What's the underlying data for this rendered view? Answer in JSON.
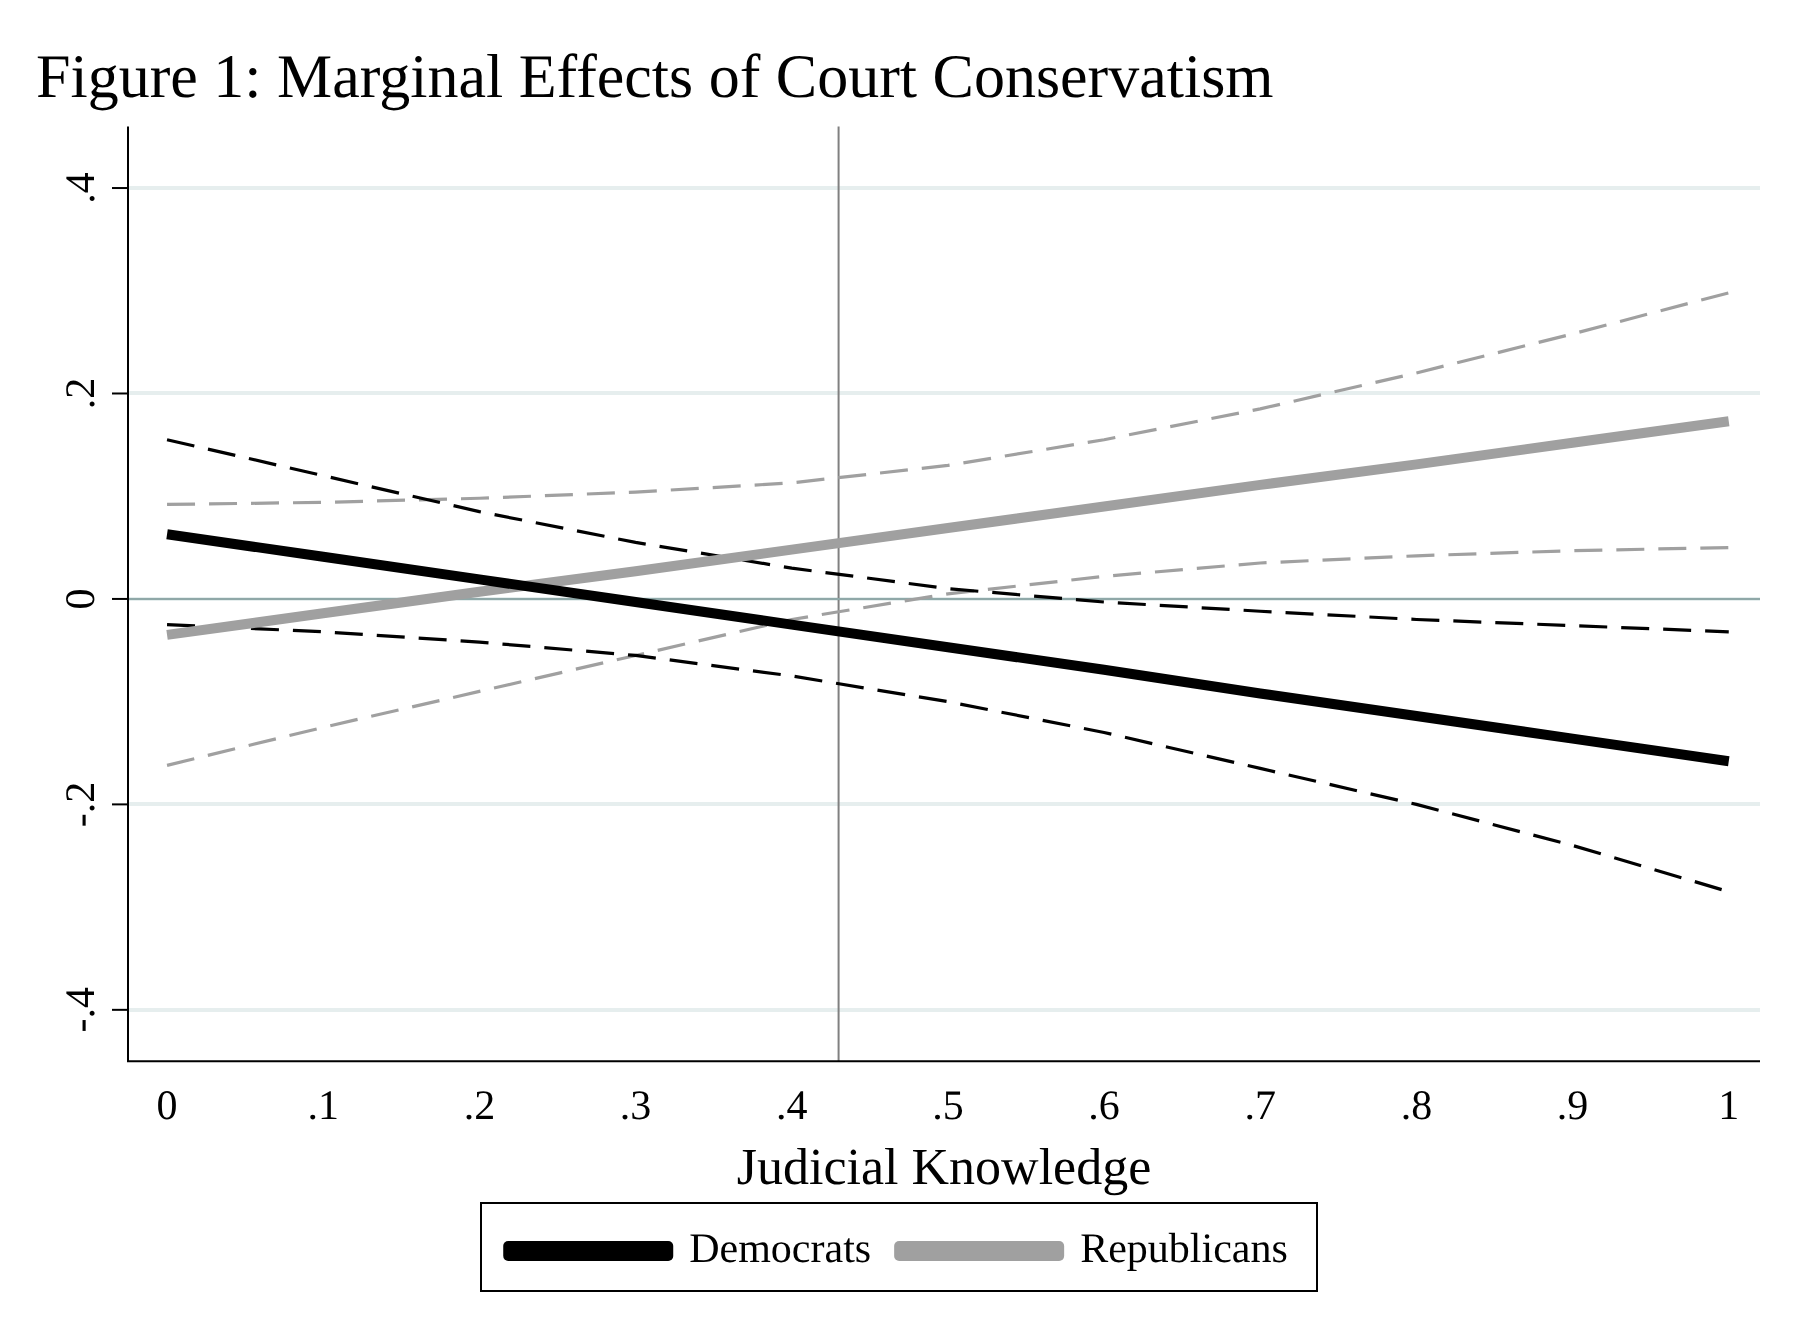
{
  "chart_data": {
    "type": "line",
    "title": "Figure 1: Marginal Effects of Court Conservatism",
    "xlabel": "Judicial Knowledge",
    "x": [
      0,
      0.1,
      0.2,
      0.3,
      0.4,
      0.5,
      0.6,
      0.7,
      0.8,
      0.9,
      1
    ],
    "series": [
      {
        "name": "Democrats",
        "color": "#000000",
        "line_style": "solid",
        "values": [
          0.063,
          0.041,
          0.019,
          -0.003,
          -0.025,
          -0.047,
          -0.069,
          -0.092,
          -0.114,
          -0.136,
          -0.158
        ]
      },
      {
        "name": "Republicans",
        "color": "#a0a0a0",
        "line_style": "solid",
        "values": [
          -0.035,
          -0.014,
          0.007,
          0.027,
          0.048,
          0.069,
          0.09,
          0.111,
          0.131,
          0.152,
          0.173
        ]
      },
      {
        "color": "#000000",
        "line_style": "dashed",
        "values": [
          0.155,
          0.12,
          0.085,
          0.055,
          0.03,
          0.01,
          -0.003,
          -0.012,
          -0.02,
          -0.026,
          -0.032
        ]
      },
      {
        "color": "#000000",
        "line_style": "dashed",
        "values": [
          -0.025,
          -0.032,
          -0.042,
          -0.055,
          -0.075,
          -0.1,
          -0.13,
          -0.165,
          -0.2,
          -0.24,
          -0.285
        ]
      },
      {
        "color": "#a0a0a0",
        "line_style": "dashed",
        "values": [
          0.092,
          0.094,
          0.098,
          0.104,
          0.113,
          0.13,
          0.155,
          0.185,
          0.22,
          0.258,
          0.298
        ]
      },
      {
        "color": "#a0a0a0",
        "line_style": "dashed",
        "values": [
          -0.162,
          -0.125,
          -0.09,
          -0.055,
          -0.02,
          0.005,
          0.022,
          0.035,
          0.042,
          0.047,
          0.05
        ]
      }
    ],
    "xlim": [
      -0.025,
      1.02
    ],
    "ylim": [
      -0.45,
      0.46
    ],
    "xticks": [
      0,
      {
        "value": 0.1,
        "label": ".1"
      },
      {
        "value": 0.2,
        "label": ".2"
      },
      {
        "value": 0.3,
        "label": ".3"
      },
      {
        "value": 0.4,
        "label": ".4"
      },
      {
        "value": 0.5,
        "label": ".5"
      },
      {
        "value": 0.6,
        "label": ".6"
      },
      {
        "value": 0.7,
        "label": ".7"
      },
      {
        "value": 0.8,
        "label": ".8"
      },
      {
        "value": 0.9,
        "label": ".9"
      },
      1
    ],
    "yticks": [
      {
        "value": -0.4,
        "label": "-.4"
      },
      {
        "value": -0.2,
        "label": "-.2"
      },
      0,
      {
        "value": 0.2,
        "label": ".2"
      },
      {
        "value": 0.4,
        "label": ".4"
      }
    ],
    "ref_lines": [
      {
        "axis": "x",
        "value": 0.43,
        "color": "#808080"
      },
      {
        "axis": "y",
        "value": 0,
        "color": "#8fa8a8"
      }
    ],
    "grid": "y",
    "legend": "bottom",
    "marker": "none"
  }
}
